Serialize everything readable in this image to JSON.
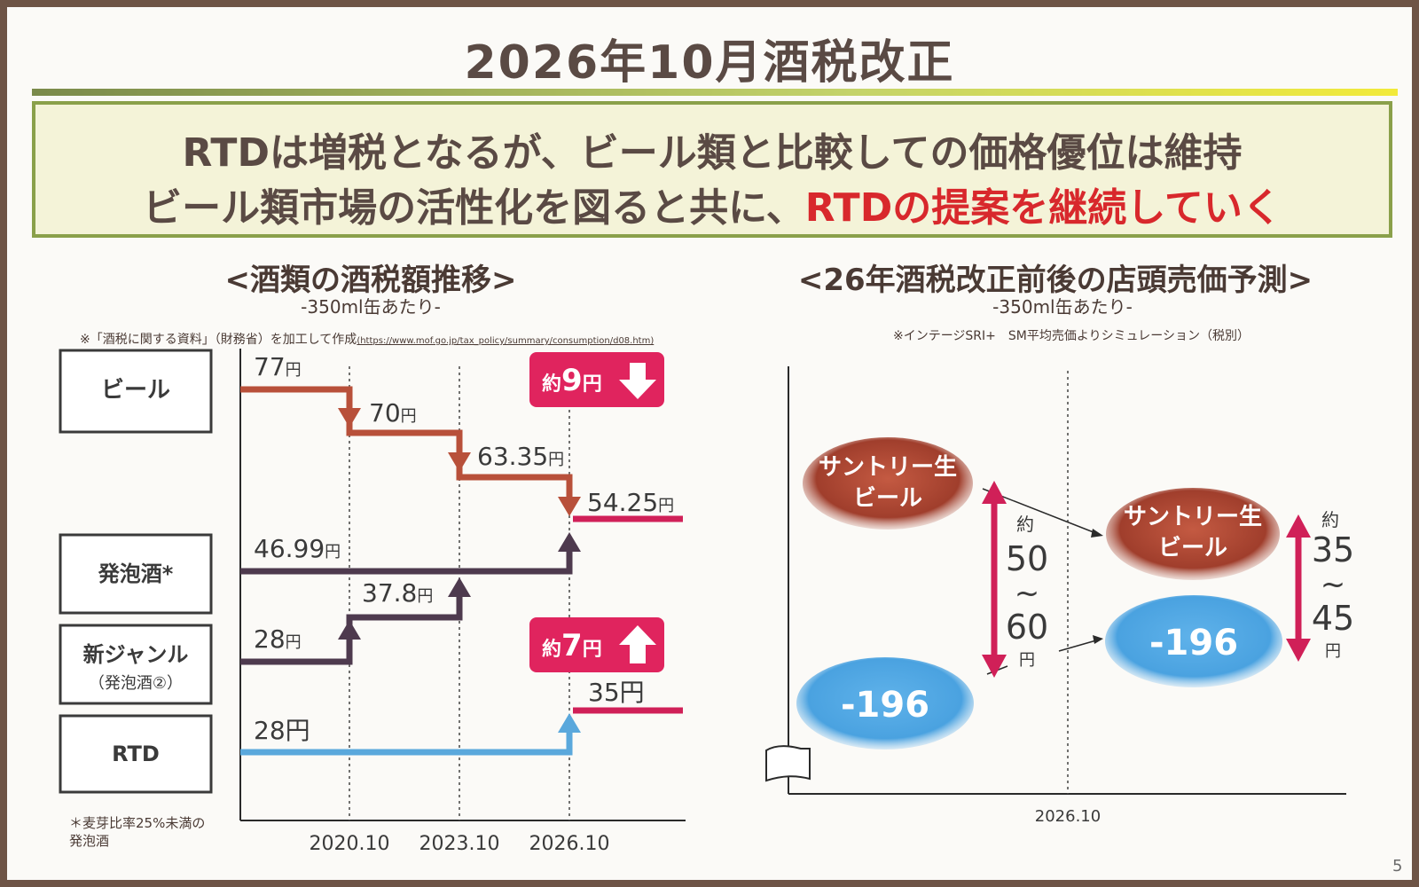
{
  "slide": {
    "title": "2026年10月酒税改正",
    "banner_line1": "RTDは増税となるが、ビール類と比較しての価格優位は維持",
    "banner_line2_prefix": "ビール類市場の活性化を図ると共に、",
    "banner_line2_highlight": "RTDの提案を継続していく",
    "page_number": "5"
  },
  "left": {
    "title": "<酒類の酒税額推移>",
    "subtitle": "-350ml缶あたり-",
    "note": "※「酒税に関する資料」（財務省）を加工して作成",
    "note_url": "(https://www.mof.go.jp/tax_policy/summary/consumption/d08.htm)",
    "categories": [
      {
        "label": "ビール"
      },
      {
        "label": "発泡酒*"
      },
      {
        "label": "新ジャンル",
        "sublabel": "（発泡酒②）"
      },
      {
        "label": "RTD"
      }
    ],
    "footnote_line1": "＊麦芽比率25%未満の",
    "footnote_line2": "発泡酒",
    "dates": [
      "2020.10",
      "2023.10",
      "2026.10"
    ],
    "beer_values": {
      "v1": "77",
      "v2": "70",
      "v3": "63.35",
      "v4": "54.25"
    },
    "happoshu_value": "46.99",
    "newgenre_values": {
      "v1": "28",
      "v2": "37.8"
    },
    "rtd_values": {
      "v1": "28",
      "v2": "35"
    },
    "yen": "円",
    "badge_down": {
      "prefix": "約",
      "value": "9",
      "unit": "円"
    },
    "badge_up": {
      "prefix": "約",
      "value": "7",
      "unit": "円"
    },
    "colors": {
      "beer": "#b8503a",
      "happoshu": "#4e3a4e",
      "rtd": "#5aa8dc",
      "after": "#d02058"
    }
  },
  "right": {
    "title": "<26年酒税改正前後の店頭売価予測>",
    "subtitle": "-350ml缶あたり-",
    "note": "※インテージSRI+　SM平均売価よりシミュレーション（税別）",
    "date": "2026.10",
    "beer_line1": "サントリー生",
    "beer_line2": "ビール",
    "rtd_label": "-196",
    "gap_before": {
      "prefix": "約",
      "top": "50",
      "tilde": "~",
      "bottom": "60",
      "unit": "円"
    },
    "gap_after": {
      "prefix": "約",
      "top": "35",
      "tilde": "~",
      "bottom": "45",
      "unit": "円"
    },
    "colors": {
      "beer": "#a8402e",
      "rtd": "#5aaee8",
      "arrow": "#d02058"
    }
  }
}
